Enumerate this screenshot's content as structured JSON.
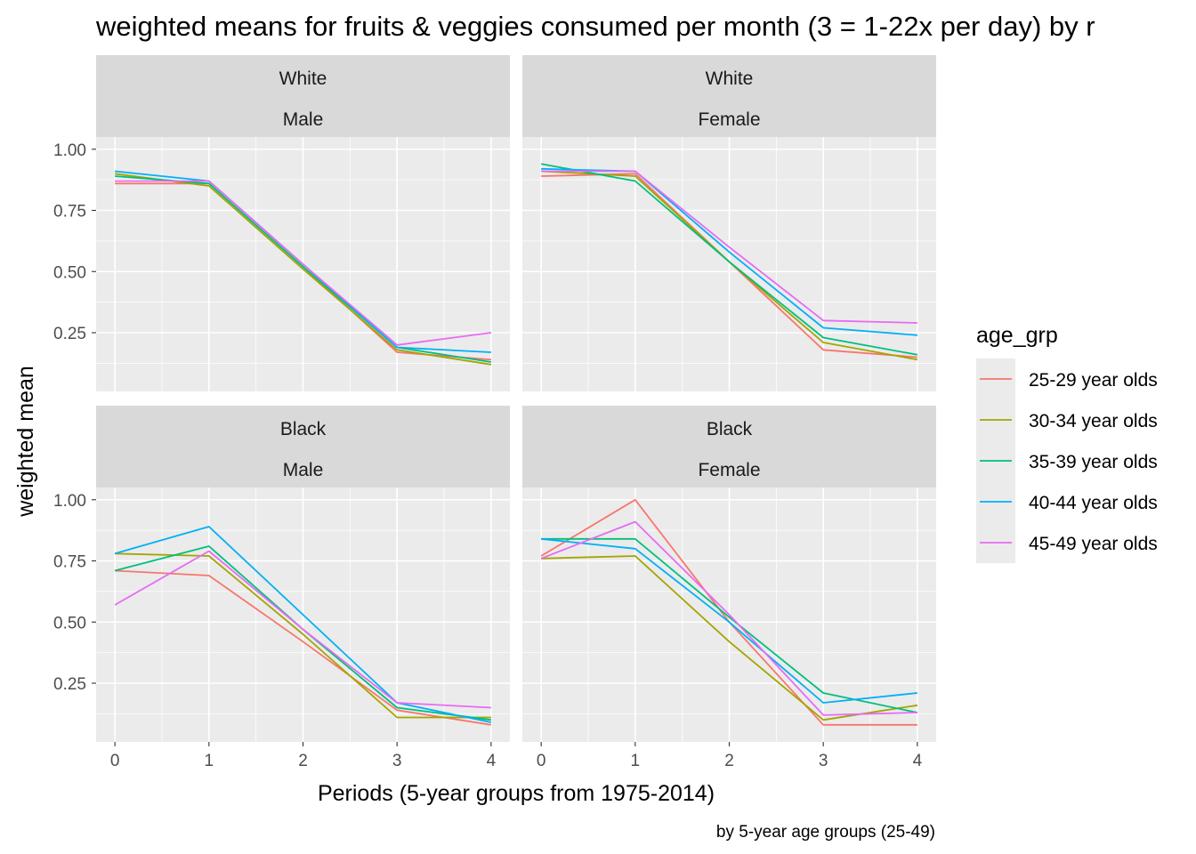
{
  "chart_data": {
    "type": "line",
    "title": "weighted means for fruits & veggies consumed per month (3 = 1-22x per day) by r",
    "xlabel": "Periods (5-year groups from 1975-2014)",
    "ylabel": "weighted mean",
    "caption": "by 5-year age groups (25-49)",
    "x": [
      0,
      1,
      2,
      3,
      4
    ],
    "x_ticks": [
      0,
      1,
      2,
      3,
      4
    ],
    "xlim": [
      -0.2,
      4.2
    ],
    "ylim": [
      0.01,
      1.05
    ],
    "y_ticks": [
      0.25,
      0.5,
      0.75,
      1.0
    ],
    "y_tick_labels": [
      "0.25",
      "0.50",
      "0.75",
      "1.00"
    ],
    "grid": true,
    "legend": {
      "title": "age_grp",
      "position": "right",
      "entries": [
        "25-29 year olds",
        "30-34 year olds",
        "35-39 year olds",
        "40-44 year olds",
        "45-49 year olds"
      ]
    },
    "colors": {
      "25-29 year olds": "#F8766D",
      "30-34 year olds": "#A3A500",
      "35-39 year olds": "#00BF7D",
      "40-44 year olds": "#00B0F6",
      "45-49 year olds": "#E76BF3"
    },
    "panels": [
      {
        "strip": [
          "White",
          "Male"
        ],
        "series": [
          {
            "name": "25-29 year olds",
            "values": [
              0.86,
              0.86,
              0.52,
              0.17,
              0.14
            ]
          },
          {
            "name": "30-34 year olds",
            "values": [
              0.9,
              0.85,
              0.51,
              0.18,
              0.12
            ]
          },
          {
            "name": "35-39 year olds",
            "values": [
              0.89,
              0.86,
              0.52,
              0.19,
              0.13
            ]
          },
          {
            "name": "40-44 year olds",
            "values": [
              0.91,
              0.87,
              0.53,
              0.19,
              0.17
            ]
          },
          {
            "name": "45-49 year olds",
            "values": [
              0.87,
              0.87,
              0.53,
              0.2,
              0.25
            ]
          }
        ]
      },
      {
        "strip": [
          "White",
          "Female"
        ],
        "series": [
          {
            "name": "25-29 year olds",
            "values": [
              0.89,
              0.9,
              0.54,
              0.18,
              0.15
            ]
          },
          {
            "name": "30-34 year olds",
            "values": [
              0.91,
              0.89,
              0.54,
              0.21,
              0.14
            ]
          },
          {
            "name": "35-39 year olds",
            "values": [
              0.94,
              0.87,
              0.54,
              0.23,
              0.16
            ]
          },
          {
            "name": "40-44 year olds",
            "values": [
              0.92,
              0.91,
              0.58,
              0.27,
              0.24
            ]
          },
          {
            "name": "45-49 year olds",
            "values": [
              0.91,
              0.91,
              0.6,
              0.3,
              0.29
            ]
          }
        ]
      },
      {
        "strip": [
          "Black",
          "Male"
        ],
        "series": [
          {
            "name": "25-29 year olds",
            "values": [
              0.71,
              0.69,
              0.42,
              0.14,
              0.08
            ]
          },
          {
            "name": "30-34 year olds",
            "values": [
              0.78,
              0.77,
              0.45,
              0.11,
              0.11
            ]
          },
          {
            "name": "35-39 year olds",
            "values": [
              0.71,
              0.81,
              0.47,
              0.15,
              0.1
            ]
          },
          {
            "name": "40-44 year olds",
            "values": [
              0.78,
              0.89,
              0.53,
              0.17,
              0.09
            ]
          },
          {
            "name": "45-49 year olds",
            "values": [
              0.57,
              0.79,
              0.47,
              0.17,
              0.15
            ]
          }
        ]
      },
      {
        "strip": [
          "Black",
          "Female"
        ],
        "series": [
          {
            "name": "25-29 year olds",
            "values": [
              0.77,
              1.0,
              0.5,
              0.08,
              0.08
            ]
          },
          {
            "name": "30-34 year olds",
            "values": [
              0.76,
              0.77,
              0.42,
              0.1,
              0.16
            ]
          },
          {
            "name": "35-39 year olds",
            "values": [
              0.84,
              0.84,
              0.52,
              0.21,
              0.13
            ]
          },
          {
            "name": "40-44 year olds",
            "values": [
              0.84,
              0.8,
              0.5,
              0.17,
              0.21
            ]
          },
          {
            "name": "45-49 year olds",
            "values": [
              0.76,
              0.91,
              0.53,
              0.12,
              0.13
            ]
          }
        ]
      }
    ]
  }
}
